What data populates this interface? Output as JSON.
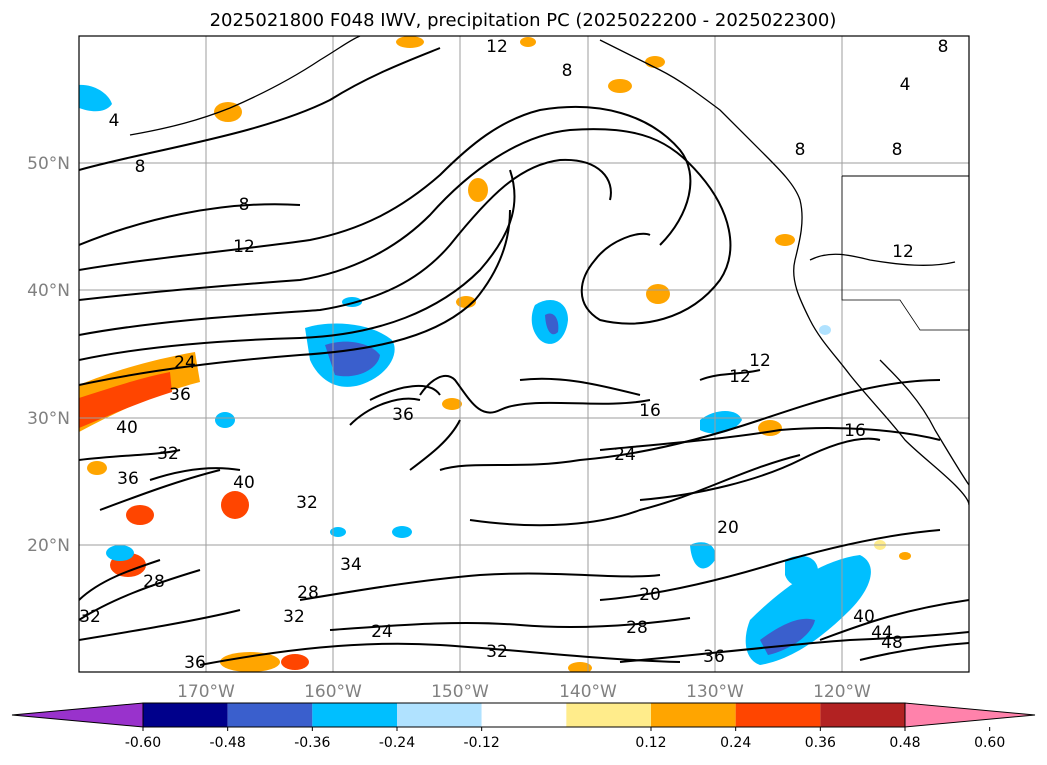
{
  "title": "2025021800 F048 IWV, precipitation PC (2025022200 - 2025022300)",
  "map": {
    "lat_ticks": [
      "50°N",
      "40°N",
      "30°N",
      "20°N"
    ],
    "lon_ticks": [
      "170°W",
      "160°W",
      "150°W",
      "140°W",
      "130°W",
      "120°W"
    ]
  },
  "colorbar": {
    "ticks": [
      "-0.60",
      "-0.48",
      "-0.36",
      "-0.24",
      "-0.12",
      "0.12",
      "0.24",
      "0.36",
      "0.48",
      "0.60"
    ],
    "colors": {
      "under": "#9932CC",
      "bins": [
        "#00008B",
        "#3A5FCD",
        "#00BFFF",
        "#B0E2FF",
        "#FFFFFF",
        "#FFEC8B",
        "#FFA500",
        "#FF4500",
        "#B22222"
      ],
      "over": "#FF82AB"
    }
  },
  "contour_labels": [
    {
      "text": "12"
    },
    {
      "text": "8"
    },
    {
      "text": "8"
    },
    {
      "text": "8"
    },
    {
      "text": "12"
    },
    {
      "text": "24"
    },
    {
      "text": "36"
    },
    {
      "text": "40"
    },
    {
      "text": "32"
    },
    {
      "text": "36"
    },
    {
      "text": "40"
    },
    {
      "text": "36"
    },
    {
      "text": "16"
    },
    {
      "text": "24"
    },
    {
      "text": "20"
    },
    {
      "text": "20"
    },
    {
      "text": "28"
    },
    {
      "text": "36"
    },
    {
      "text": "40"
    },
    {
      "text": "44"
    },
    {
      "text": "48"
    },
    {
      "text": "32"
    },
    {
      "text": "28"
    },
    {
      "text": "32"
    },
    {
      "text": "24"
    },
    {
      "text": "32"
    },
    {
      "text": "36"
    },
    {
      "text": "28"
    },
    {
      "text": "32"
    },
    {
      "text": "16"
    },
    {
      "text": "12"
    },
    {
      "text": "8"
    },
    {
      "text": "4"
    },
    {
      "text": "8"
    },
    {
      "text": "34"
    },
    {
      "text": "12"
    },
    {
      "text": "12"
    },
    {
      "text": "4"
    },
    {
      "text": "8"
    }
  ]
}
